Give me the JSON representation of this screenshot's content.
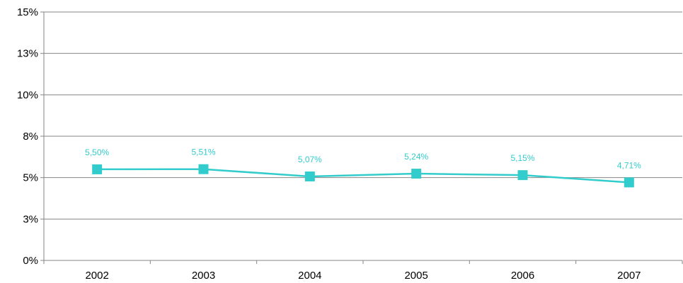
{
  "chart_data": {
    "type": "line",
    "categories": [
      "2002",
      "2003",
      "2004",
      "2005",
      "2006",
      "2007"
    ],
    "series": [
      {
        "values": [
          5.5,
          5.51,
          5.07,
          5.24,
          5.15,
          4.71
        ]
      }
    ],
    "data_labels": [
      "5,50%",
      "5,51%",
      "5,07%",
      "5,24%",
      "5,15%",
      "4,71%"
    ],
    "y_ticks": [
      0,
      2.5,
      5,
      7.5,
      10,
      12.5,
      15
    ],
    "y_tick_labels": [
      "0%",
      "3%",
      "5%",
      "8%",
      "10%",
      "13%",
      "15%"
    ],
    "ylim": [
      0,
      15
    ],
    "grid": "horizontal",
    "marker": "square",
    "colors": {
      "series": "#33cccc",
      "grid": "#868686",
      "axis": "#868686",
      "text": "#000000"
    }
  }
}
